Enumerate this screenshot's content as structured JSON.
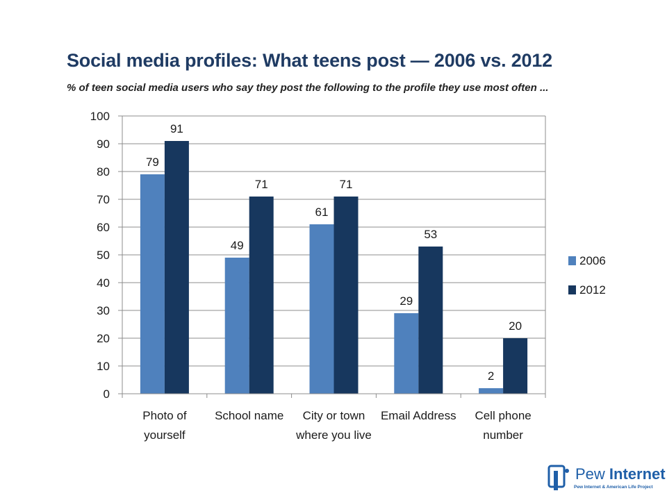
{
  "title": "Social media profiles: What teens post — 2006 vs. 2012",
  "subtitle": "% of teen social media users who say they post the following to the profile they use most often ...",
  "logo": {
    "name_regular": "Pew ",
    "name_bold": "Internet",
    "tagline": "Pew Internet & American Life Project"
  },
  "chart_data": {
    "type": "bar",
    "categories": [
      [
        "Photo of",
        "yourself"
      ],
      [
        "School name"
      ],
      [
        "City or town",
        "where you live"
      ],
      [
        "Email Address"
      ],
      [
        "Cell phone",
        "number"
      ]
    ],
    "series": [
      {
        "name": "2006",
        "values": [
          79,
          49,
          61,
          29,
          2
        ],
        "color": "#4f81bd"
      },
      {
        "name": "2012",
        "values": [
          91,
          71,
          71,
          53,
          20
        ],
        "color": "#17375e"
      }
    ],
    "ylim": [
      0,
      100
    ],
    "yticks": [
      0,
      10,
      20,
      30,
      40,
      50,
      60,
      70,
      80,
      90,
      100
    ],
    "grid": true,
    "legend": "right",
    "data_labels": true
  }
}
